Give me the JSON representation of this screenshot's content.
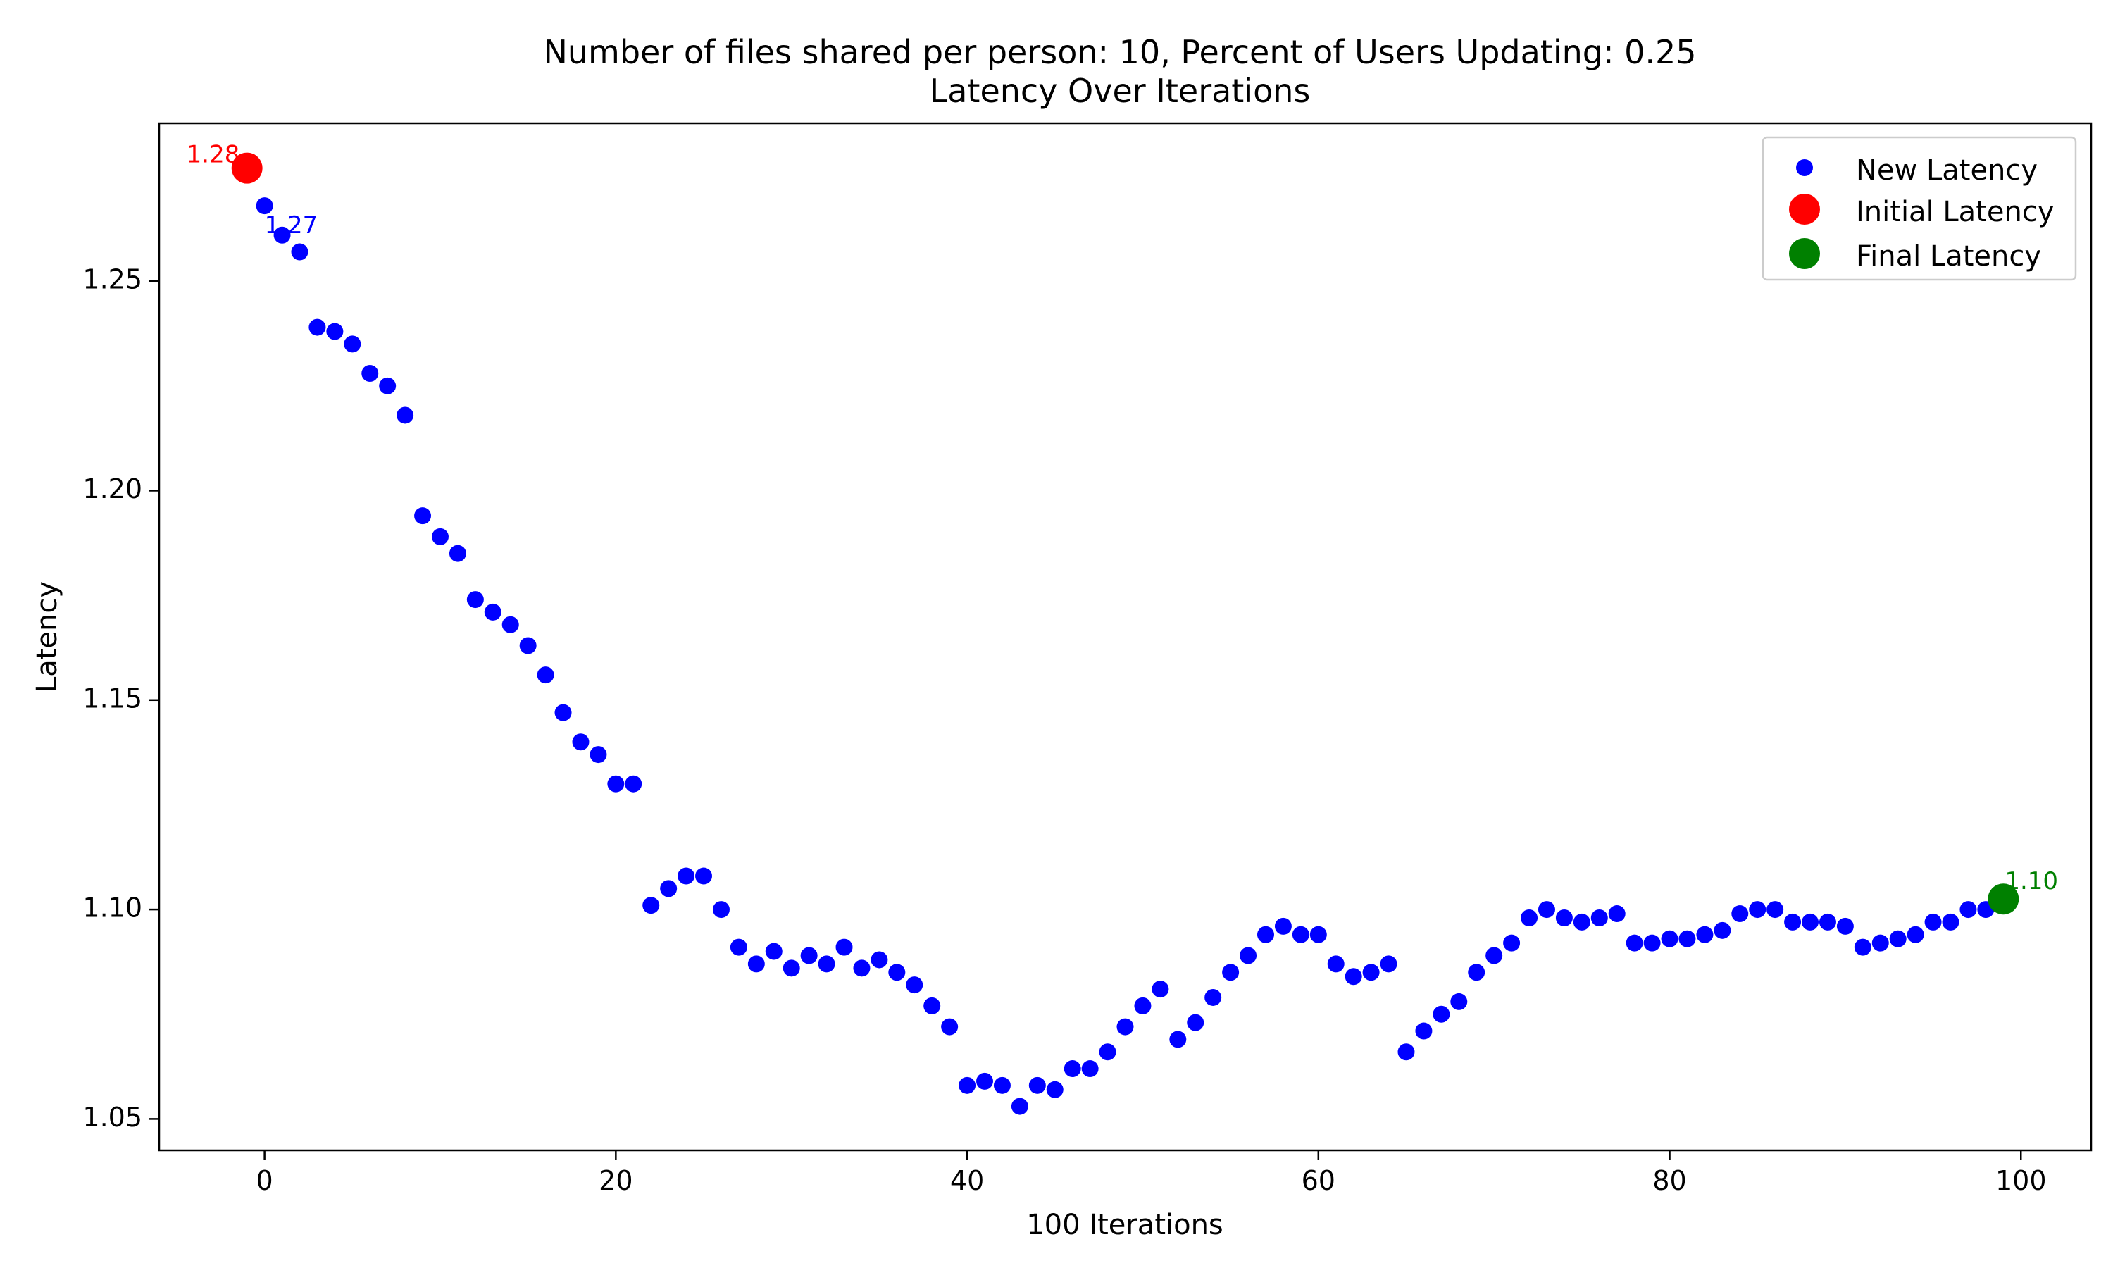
{
  "chart_data": {
    "type": "scatter",
    "title_line1": "Number of files shared per person: 10, Percent of Users Updating: 0.25",
    "title_line2": "Latency Over Iterations",
    "xlabel": "100 Iterations",
    "ylabel": "Latency",
    "xlim": [
      -6,
      104
    ],
    "ylim": [
      1.0425,
      1.2877
    ],
    "xticks": [
      0,
      20,
      40,
      60,
      80,
      100
    ],
    "yticks": [
      1.05,
      1.1,
      1.15,
      1.2,
      1.25
    ],
    "ytick_labels": [
      "1.05",
      "1.10",
      "1.15",
      "1.20",
      "1.25"
    ],
    "grid": false,
    "legend_position": "top-right",
    "series": [
      {
        "name": "New Latency",
        "color": "#0000ff",
        "x": [
          0,
          1,
          2,
          3,
          4,
          5,
          6,
          7,
          8,
          9,
          10,
          11,
          12,
          13,
          14,
          15,
          16,
          17,
          18,
          19,
          20,
          21,
          22,
          23,
          24,
          25,
          26,
          27,
          28,
          29,
          30,
          31,
          32,
          33,
          34,
          35,
          36,
          37,
          38,
          39,
          40,
          41,
          42,
          43,
          44,
          45,
          46,
          47,
          48,
          49,
          50,
          51,
          52,
          53,
          54,
          55,
          56,
          57,
          58,
          59,
          60,
          61,
          62,
          63,
          64,
          65,
          66,
          67,
          68,
          69,
          70,
          71,
          72,
          73,
          74,
          75,
          76,
          77,
          78,
          79,
          80,
          81,
          82,
          83,
          84,
          85,
          86,
          87,
          88,
          89,
          90,
          91,
          92,
          93,
          94,
          95,
          96,
          97,
          98,
          99
        ],
        "y": [
          1.268,
          1.261,
          1.257,
          1.239,
          1.238,
          1.235,
          1.228,
          1.225,
          1.218,
          1.194,
          1.189,
          1.185,
          1.174,
          1.171,
          1.168,
          1.163,
          1.156,
          1.147,
          1.14,
          1.137,
          1.13,
          1.13,
          1.101,
          1.105,
          1.108,
          1.108,
          1.1,
          1.091,
          1.087,
          1.09,
          1.086,
          1.089,
          1.087,
          1.091,
          1.086,
          1.088,
          1.085,
          1.082,
          1.077,
          1.072,
          1.058,
          1.059,
          1.058,
          1.053,
          1.058,
          1.057,
          1.062,
          1.062,
          1.066,
          1.072,
          1.077,
          1.081,
          1.069,
          1.073,
          1.079,
          1.085,
          1.089,
          1.094,
          1.096,
          1.094,
          1.094,
          1.087,
          1.084,
          1.085,
          1.087,
          1.066,
          1.071,
          1.075,
          1.078,
          1.085,
          1.089,
          1.092,
          1.098,
          1.1,
          1.098,
          1.097,
          1.098,
          1.099,
          1.092,
          1.092,
          1.093,
          1.093,
          1.094,
          1.095,
          1.099,
          1.1,
          1.1,
          1.097,
          1.097,
          1.097,
          1.096,
          1.091,
          1.092,
          1.093,
          1.094,
          1.097,
          1.097,
          1.1,
          1.1,
          1.102
        ]
      },
      {
        "name": "Initial Latency",
        "color": "#ff0000",
        "x": [
          -1
        ],
        "y": [
          1.277
        ]
      },
      {
        "name": "Final Latency",
        "color": "#008000",
        "x": [
          99
        ],
        "y": [
          1.1025
        ]
      }
    ],
    "annotations": [
      {
        "text": "1.28",
        "x": -1,
        "y": 1.277,
        "color": "#ff0000"
      },
      {
        "text": "1.27",
        "x": 0,
        "y": 1.268,
        "color": "#0000ff"
      },
      {
        "text": "1.10",
        "x": 99,
        "y": 1.1025,
        "color": "#008000"
      }
    ]
  }
}
